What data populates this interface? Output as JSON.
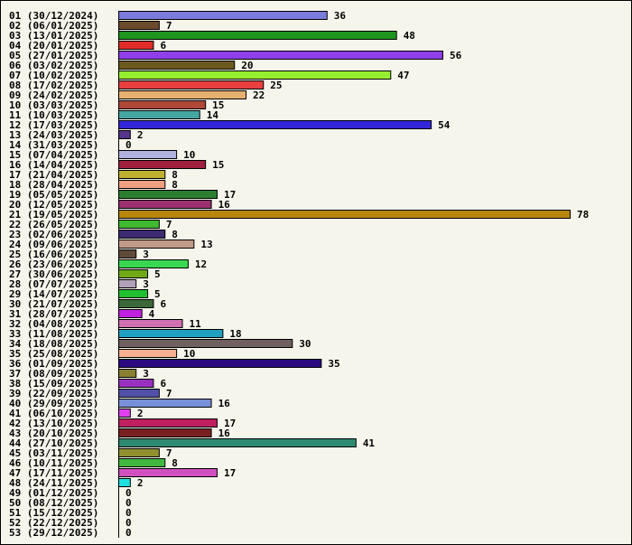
{
  "chart_data": {
    "type": "bar",
    "orientation": "horizontal",
    "title": "",
    "xlabel": "",
    "ylabel": "",
    "xlim": [
      0,
      78
    ],
    "grid": false,
    "legend": "none",
    "categories": [
      "01 (30/12/2024)",
      "02 (06/01/2025)",
      "03 (13/01/2025)",
      "04 (20/01/2025)",
      "05 (27/01/2025)",
      "06 (03/02/2025)",
      "07 (10/02/2025)",
      "08 (17/02/2025)",
      "09 (24/02/2025)",
      "10 (03/03/2025)",
      "11 (10/03/2025)",
      "12 (17/03/2025)",
      "13 (24/03/2025)",
      "14 (31/03/2025)",
      "15 (07/04/2025)",
      "16 (14/04/2025)",
      "17 (21/04/2025)",
      "18 (28/04/2025)",
      "19 (05/05/2025)",
      "20 (12/05/2025)",
      "21 (19/05/2025)",
      "22 (26/05/2025)",
      "23 (02/06/2025)",
      "24 (09/06/2025)",
      "25 (16/06/2025)",
      "26 (23/06/2025)",
      "27 (30/06/2025)",
      "28 (07/07/2025)",
      "29 (14/07/2025)",
      "30 (21/07/2025)",
      "31 (28/07/2025)",
      "32 (04/08/2025)",
      "33 (11/08/2025)",
      "34 (18/08/2025)",
      "35 (25/08/2025)",
      "36 (01/09/2025)",
      "37 (08/09/2025)",
      "38 (15/09/2025)",
      "39 (22/09/2025)",
      "40 (29/09/2025)",
      "41 (06/10/2025)",
      "42 (13/10/2025)",
      "43 (20/10/2025)",
      "44 (27/10/2025)",
      "45 (03/11/2025)",
      "46 (10/11/2025)",
      "47 (17/11/2025)",
      "48 (24/11/2025)",
      "49 (01/12/2025)",
      "50 (08/12/2025)",
      "51 (15/12/2025)",
      "52 (22/12/2025)",
      "53 (29/12/2025)"
    ],
    "values": [
      36,
      7,
      48,
      6,
      56,
      20,
      47,
      25,
      22,
      15,
      14,
      54,
      2,
      0,
      10,
      15,
      8,
      8,
      17,
      16,
      78,
      7,
      8,
      13,
      3,
      12,
      5,
      3,
      5,
      6,
      4,
      11,
      18,
      30,
      10,
      35,
      3,
      6,
      7,
      16,
      2,
      17,
      16,
      41,
      7,
      8,
      17,
      2,
      0,
      0,
      0,
      0,
      0
    ],
    "colors": [
      "#7b7bdb",
      "#6b4a2e",
      "#1f951f",
      "#e22b2b",
      "#9040e8",
      "#6b5a1e",
      "#96ee30",
      "#e84040",
      "#e6b070",
      "#b04838",
      "#45a5a0",
      "#3326d8",
      "#55358a",
      "#ffffff",
      "#b2b2e0",
      "#a02040",
      "#c0b030",
      "#f0a080",
      "#2e7e30",
      "#9a3070",
      "#b8860b",
      "#40b830",
      "#3d2a70",
      "#c09a88",
      "#5e4a3a",
      "#3ad850",
      "#70a818",
      "#b0a0b8",
      "#20c030",
      "#3a6838",
      "#c020e0",
      "#d070b0",
      "#20a0c0",
      "#706060",
      "#f4b090",
      "#2a0a80",
      "#888030",
      "#9a30c0",
      "#5050a8",
      "#7890d8",
      "#e040f0",
      "#c02060",
      "#782020",
      "#2e8a70",
      "#909030",
      "#40b840",
      "#d050c0",
      "#20e0e0",
      "#ffffff",
      "#ffffff",
      "#ffffff",
      "#ffffff",
      "#ffffff"
    ]
  }
}
